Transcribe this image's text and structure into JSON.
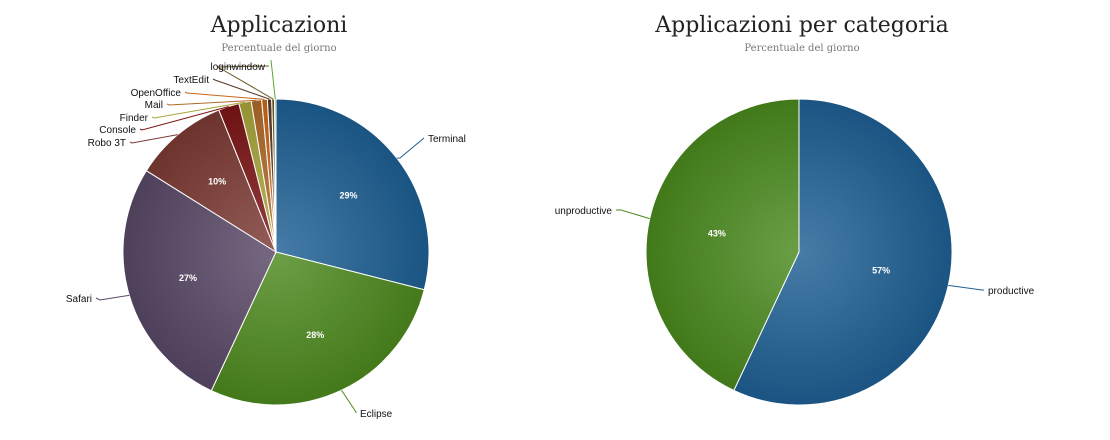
{
  "chart_data": [
    {
      "type": "pie",
      "title": "Applicazioni",
      "subtitle": "Percentuale del giorno",
      "slices": [
        {
          "label": "Terminal",
          "value": 29.0,
          "pct_label": "29%",
          "color": "#1d5f94"
        },
        {
          "label": "Eclipse",
          "value": 28.0,
          "pct_label": "28%",
          "color": "#4d8a1e"
        },
        {
          "label": "Safari",
          "value": 27.0,
          "pct_label": "27%",
          "color": "#594866"
        },
        {
          "label": "Robo 3T",
          "value": 10.0,
          "pct_label": "10%",
          "color": "#7c3a33"
        },
        {
          "label": "Console",
          "value": 2.2,
          "pct_label": "",
          "color": "#7d1416"
        },
        {
          "label": "Finder",
          "value": 1.3,
          "pct_label": "",
          "color": "#a8a53a"
        },
        {
          "label": "Mail",
          "value": 1.1,
          "pct_label": "",
          "color": "#b06a2a"
        },
        {
          "label": "OpenOffice",
          "value": 0.6,
          "pct_label": "",
          "color": "#c9671a"
        },
        {
          "label": "TextEdit",
          "value": 0.45,
          "pct_label": "",
          "color": "#5a3a26"
        },
        {
          "label": "loginwindow",
          "value": 0.3,
          "pct_label": "",
          "color": "#6b5a2a"
        },
        {
          "label": "",
          "value": 0.15,
          "pct_label": "",
          "color": "#5aa832"
        }
      ]
    },
    {
      "type": "pie",
      "title": "Applicazioni per categoria",
      "subtitle": "Percentuale del giorno",
      "slices": [
        {
          "label": "productive",
          "value": 57,
          "pct_label": "57%",
          "color": "#1f5f94"
        },
        {
          "label": "unproductive",
          "value": 43,
          "pct_label": "43%",
          "color": "#4a8a1e"
        }
      ]
    }
  ]
}
